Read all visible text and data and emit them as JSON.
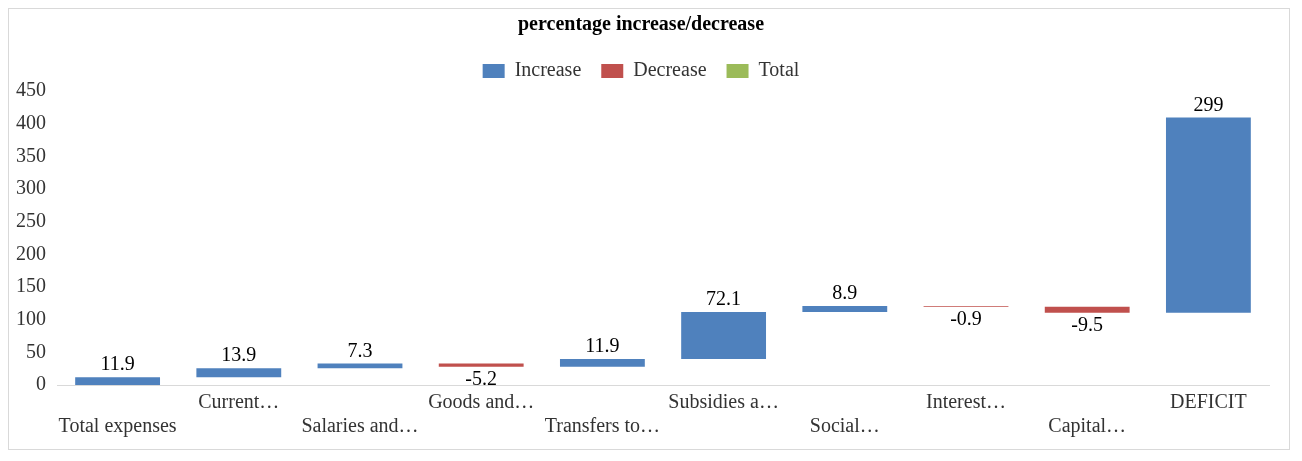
{
  "chart_data": {
    "type": "bar",
    "title": "percentage increase/decrease",
    "categories": [
      "Total expenses",
      "Current…",
      "Salaries and…",
      "Goods and…",
      "Transfers to…",
      "Subsidies a…",
      "Social…",
      "Interest…",
      "Capital…",
      "DEFICIT"
    ],
    "series": [
      {
        "name": "Increase",
        "color": "#4f81bd",
        "values": [
          11.9,
          13.9,
          7.3,
          null,
          11.9,
          72.1,
          8.9,
          null,
          null,
          299
        ],
        "base": [
          0,
          11.9,
          25.8,
          null,
          27.9,
          39.8,
          111.9,
          null,
          null,
          110.4
        ]
      },
      {
        "name": "Decrease",
        "color": "#c0504d",
        "values": [
          null,
          null,
          null,
          -5.2,
          null,
          null,
          null,
          -0.9,
          -9.5,
          null
        ],
        "base": [
          null,
          null,
          null,
          33.1,
          null,
          null,
          null,
          120.8,
          119.9,
          null
        ]
      },
      {
        "name": "Total",
        "color": "#9bbb59",
        "values": [
          null,
          null,
          null,
          null,
          null,
          null,
          null,
          null,
          null,
          null
        ]
      }
    ],
    "ylim": [
      0,
      450
    ],
    "yticks": [
      0,
      50,
      100,
      150,
      200,
      250,
      300,
      350,
      400,
      450
    ],
    "data_labels": true,
    "legend": "top",
    "grid": false
  }
}
